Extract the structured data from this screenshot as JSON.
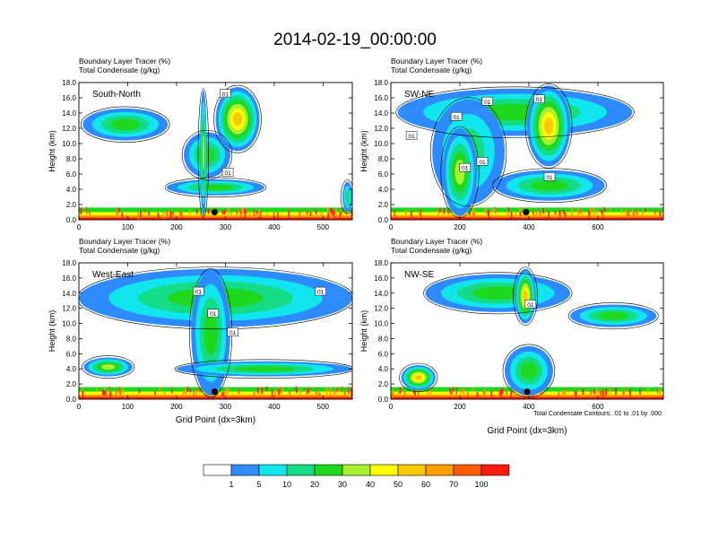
{
  "title": "2014-02-19_00:00:00",
  "legend": {
    "labels": [
      "1",
      "5",
      "10",
      "20",
      "30",
      "40",
      "50",
      "60",
      "70",
      "100"
    ],
    "colors": [
      "#ffffff",
      "#2e8bff",
      "#11e6ee",
      "#14dc84",
      "#1ed81e",
      "#a8f030",
      "#ffff00",
      "#f8c800",
      "#ff9e00",
      "#ff5a00",
      "#ff1a10"
    ]
  },
  "footnote": "Total Condensate Contours: .01 to .01 by .000",
  "chart_data": [
    {
      "type": "heatmap",
      "panel": "top-left",
      "label": "South-North",
      "title_lines": [
        "Boundary Layer Tracer   (%)",
        "Total Condensate   (g/kg)"
      ],
      "ylabel": "Height (km)",
      "xlabel": "",
      "xlim": [
        0,
        560
      ],
      "ylim": [
        0,
        18
      ],
      "xticks": [
        "0",
        "100",
        "200",
        "300",
        "400",
        "500"
      ],
      "xtick_values": [
        0,
        100,
        200,
        300,
        400,
        500
      ],
      "yticks": [
        "0.0",
        "2.0",
        "4.0",
        "6.0",
        "8.0",
        "10.0",
        "12.0",
        "14.0",
        "16.0",
        "18.0"
      ],
      "contour_labels": [
        {
          "text": "01",
          "x": 300,
          "y": 16.5
        },
        {
          "text": "01",
          "x": 305,
          "y": 6.2
        }
      ],
      "marker": {
        "x": 278,
        "y": 1.0
      },
      "features": [
        {
          "x0": 8,
          "x1": 182,
          "y0": 10.4,
          "y1": 14.6,
          "level": 4
        },
        {
          "x0": 215,
          "x1": 310,
          "y0": 5.5,
          "y1": 11.5,
          "level": 4
        },
        {
          "x0": 180,
          "x1": 380,
          "y0": 3.2,
          "y1": 5.3,
          "level": 4
        },
        {
          "x0": 280,
          "x1": 370,
          "y0": 9.0,
          "y1": 17.4,
          "level": 7
        },
        {
          "x0": 248,
          "x1": 262,
          "y0": 0.5,
          "y1": 17.0,
          "level": 5
        },
        {
          "x0": 540,
          "x1": 560,
          "y0": 1.0,
          "y1": 5.0,
          "level": 3
        }
      ]
    },
    {
      "type": "heatmap",
      "panel": "top-right",
      "label": "SW-NE",
      "title_lines": [
        "Boundary Layer Tracer   (%)",
        "Total Condensate   (g/kg)"
      ],
      "ylabel": "Height (km)",
      "xlabel": "",
      "xlim": [
        0,
        790
      ],
      "ylim": [
        0,
        18
      ],
      "xticks": [
        "0",
        "200",
        "400",
        "600"
      ],
      "xtick_values": [
        0,
        200,
        400,
        600
      ],
      "yticks": [
        "0.0",
        "2.0",
        "4.0",
        "6.0",
        "8.0",
        "10.0",
        "12.0",
        "14.0",
        "16.0",
        "18.0"
      ],
      "contour_labels": [
        {
          "text": "01",
          "x": 60,
          "y": 11.0
        },
        {
          "text": "01",
          "x": 190,
          "y": 13.5
        },
        {
          "text": "01",
          "x": 280,
          "y": 15.5
        },
        {
          "text": "01",
          "x": 430,
          "y": 15.8
        },
        {
          "text": "01",
          "x": 215,
          "y": 6.8
        },
        {
          "text": "01",
          "x": 265,
          "y": 7.6
        },
        {
          "text": "01",
          "x": 460,
          "y": 5.6
        }
      ],
      "marker": {
        "x": 392,
        "y": 1.0
      },
      "features": [
        {
          "x0": 20,
          "x1": 700,
          "y0": 11.0,
          "y1": 17.2,
          "level": 4
        },
        {
          "x0": 395,
          "x1": 520,
          "y0": 7.0,
          "y1": 17.6,
          "level": 7
        },
        {
          "x0": 120,
          "x1": 330,
          "y0": 2.0,
          "y1": 15.8,
          "level": 3
        },
        {
          "x0": 300,
          "x1": 620,
          "y0": 2.5,
          "y1": 6.5,
          "level": 4
        },
        {
          "x0": 150,
          "x1": 250,
          "y0": 0.5,
          "y1": 12.0,
          "level": 5
        }
      ]
    },
    {
      "type": "heatmap",
      "panel": "bottom-left",
      "label": "West-East",
      "title_lines": [
        "Boundary Layer Tracer   (%)",
        "Total Condensate   (g/kg)"
      ],
      "ylabel": "Height (km)",
      "xlabel": "Grid Point (dx=3km)",
      "xlim": [
        0,
        560
      ],
      "ylim": [
        0,
        18
      ],
      "xticks": [
        "0",
        "100",
        "200",
        "300",
        "400",
        "500"
      ],
      "xtick_values": [
        0,
        100,
        200,
        300,
        400,
        500
      ],
      "yticks": [
        "0.0",
        "2.0",
        "4.0",
        "6.0",
        "8.0",
        "10.0",
        "12.0",
        "14.0",
        "16.0",
        "18.0"
      ],
      "contour_labels": [
        {
          "text": "01",
          "x": 245,
          "y": 14.2
        },
        {
          "text": "01",
          "x": 275,
          "y": 11.3
        },
        {
          "text": "01",
          "x": 315,
          "y": 8.8
        },
        {
          "text": "01",
          "x": 495,
          "y": 14.2
        }
      ],
      "marker": {
        "x": 278,
        "y": 1.0
      },
      "features": [
        {
          "x0": 0,
          "x1": 560,
          "y0": 9.5,
          "y1": 17.2,
          "level": 4
        },
        {
          "x0": 10,
          "x1": 110,
          "y0": 3.0,
          "y1": 5.5,
          "level": 5
        },
        {
          "x0": 230,
          "x1": 310,
          "y0": 0.5,
          "y1": 17.0,
          "level": 4
        },
        {
          "x0": 200,
          "x1": 560,
          "y0": 3.0,
          "y1": 5.0,
          "level": 4
        }
      ]
    },
    {
      "type": "heatmap",
      "panel": "bottom-right",
      "label": "NW-SE",
      "title_lines": [
        "Boundary Layer Tracer   (%)",
        "Total Condensate   (g/kg)"
      ],
      "ylabel": "Height (km)",
      "xlabel": "Grid Point (dx=3km)",
      "xlim": [
        0,
        790
      ],
      "ylim": [
        0,
        18
      ],
      "xticks": [
        "0",
        "200",
        "400",
        "600"
      ],
      "xtick_values": [
        0,
        200,
        400,
        600
      ],
      "yticks": [
        "0.0",
        "2.0",
        "4.0",
        "6.0",
        "8.0",
        "10.0",
        "12.0",
        "14.0",
        "16.0",
        "18.0"
      ],
      "contour_labels": [
        {
          "text": "01",
          "x": 405,
          "y": 12.5
        }
      ],
      "marker": {
        "x": 395,
        "y": 1.0
      },
      "features": [
        {
          "x0": 100,
          "x1": 520,
          "y0": 11.5,
          "y1": 16.5,
          "level": 4
        },
        {
          "x0": 360,
          "x1": 420,
          "y0": 10.0,
          "y1": 17.2,
          "level": 7
        },
        {
          "x0": 520,
          "x1": 770,
          "y0": 9.5,
          "y1": 12.5,
          "level": 4
        },
        {
          "x0": 30,
          "x1": 130,
          "y0": 1.2,
          "y1": 4.5,
          "level": 7
        },
        {
          "x0": 330,
          "x1": 470,
          "y0": 0.5,
          "y1": 7.0,
          "level": 4
        }
      ]
    }
  ]
}
